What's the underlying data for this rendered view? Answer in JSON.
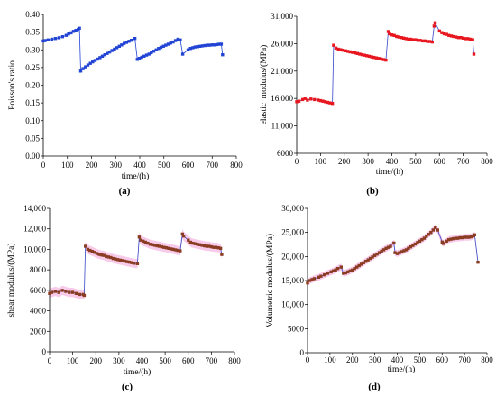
{
  "chart_data": [
    {
      "panel_label": "(a)",
      "type": "line",
      "xlabel": "time/(h)",
      "ylabel": "Poisson's ratio",
      "xlim": [
        0,
        800
      ],
      "ylim": [
        0,
        0.4
      ],
      "xticks": [
        0,
        100,
        200,
        300,
        400,
        500,
        600,
        700,
        800
      ],
      "xtick_labels": [
        "0",
        "100",
        "200",
        "300",
        "400",
        "500",
        "600",
        "700",
        "800"
      ],
      "yticks": [
        0,
        0.05,
        0.1,
        0.15,
        0.2,
        0.25,
        0.3,
        0.35,
        0.4
      ],
      "ytick_labels": [
        "0.00",
        "0.05",
        "0.10",
        "0.15",
        "0.20",
        "0.25",
        "0.30",
        "0.35",
        "0.40"
      ],
      "grid": false,
      "marker_color": "#2244d4",
      "line_color": "#2244d4",
      "series": [
        {
          "x": [
            0,
            8,
            20,
            35,
            50,
            65,
            80,
            95,
            105,
            115,
            125,
            135,
            145,
            150,
            155,
            165,
            175,
            185,
            195,
            205,
            215,
            225,
            235,
            245,
            255,
            265,
            275,
            285,
            295,
            305,
            315,
            325,
            335,
            345,
            355,
            365,
            380,
            390,
            398,
            408,
            418,
            428,
            438,
            448,
            458,
            468,
            478,
            488,
            498,
            508,
            518,
            528,
            538,
            548,
            558,
            568,
            578,
            600,
            610,
            620,
            630,
            640,
            650,
            660,
            670,
            680,
            690,
            700,
            710,
            720,
            730,
            738,
            743
          ],
          "y": [
            0.325,
            0.326,
            0.328,
            0.33,
            0.332,
            0.334,
            0.337,
            0.341,
            0.345,
            0.348,
            0.352,
            0.355,
            0.358,
            0.361,
            0.24,
            0.247,
            0.252,
            0.257,
            0.262,
            0.266,
            0.27,
            0.274,
            0.278,
            0.282,
            0.286,
            0.29,
            0.294,
            0.298,
            0.302,
            0.306,
            0.31,
            0.314,
            0.318,
            0.321,
            0.324,
            0.327,
            0.332,
            0.273,
            0.276,
            0.279,
            0.282,
            0.285,
            0.288,
            0.292,
            0.296,
            0.3,
            0.304,
            0.307,
            0.31,
            0.313,
            0.316,
            0.319,
            0.322,
            0.326,
            0.33,
            0.328,
            0.288,
            0.3,
            0.304,
            0.306,
            0.308,
            0.309,
            0.31,
            0.311,
            0.312,
            0.313,
            0.313,
            0.314,
            0.314,
            0.315,
            0.316,
            0.316,
            0.286
          ]
        }
      ]
    },
    {
      "panel_label": "(b)",
      "type": "line",
      "xlabel": "time/(h)",
      "ylabel": "elastic  modulus/(MPa)",
      "xlim": [
        0,
        800
      ],
      "ylim": [
        6000,
        31000
      ],
      "xticks": [
        0,
        100,
        200,
        300,
        400,
        500,
        600,
        700,
        800
      ],
      "xtick_labels": [
        "0",
        "100",
        "200",
        "300",
        "400",
        "500",
        "600",
        "700",
        "800"
      ],
      "yticks": [
        6000,
        11000,
        16000,
        21000,
        26000,
        31000
      ],
      "ytick_labels": [
        "6000",
        "11,000",
        "16,000",
        "21,000",
        "26,000",
        "31,000"
      ],
      "grid": false,
      "marker_color": "#e8161e",
      "line_color": "#3548c8",
      "series": [
        {
          "x": [
            0,
            10,
            25,
            35,
            45,
            60,
            75,
            90,
            100,
            110,
            120,
            130,
            140,
            150,
            155,
            165,
            175,
            185,
            195,
            205,
            215,
            225,
            235,
            245,
            255,
            265,
            275,
            285,
            295,
            305,
            315,
            325,
            335,
            345,
            355,
            365,
            375,
            385,
            390,
            400,
            410,
            420,
            430,
            440,
            450,
            460,
            470,
            480,
            490,
            500,
            510,
            520,
            530,
            540,
            550,
            560,
            570,
            578,
            582,
            600,
            610,
            620,
            630,
            640,
            650,
            660,
            670,
            680,
            690,
            700,
            710,
            720,
            730,
            740,
            745
          ],
          "y": [
            15400,
            15500,
            15800,
            16000,
            15700,
            15900,
            15800,
            15700,
            15600,
            15500,
            15400,
            15300,
            15200,
            15100,
            25700,
            25200,
            25000,
            24900,
            24800,
            24700,
            24600,
            24500,
            24400,
            24300,
            24200,
            24100,
            24000,
            23900,
            23800,
            23700,
            23600,
            23500,
            23400,
            23300,
            23200,
            23100,
            23000,
            28200,
            27800,
            27600,
            27500,
            27300,
            27200,
            27100,
            27000,
            26900,
            26800,
            26800,
            26700,
            26700,
            26600,
            26600,
            26500,
            26500,
            26400,
            26400,
            26300,
            29200,
            29800,
            28300,
            28000,
            27800,
            27700,
            27500,
            27400,
            27300,
            27200,
            27100,
            27100,
            27000,
            26900,
            26900,
            26800,
            26700,
            24100
          ]
        }
      ]
    },
    {
      "panel_label": "(c)",
      "type": "line",
      "xlabel": "time/(h)",
      "ylabel": "shear modulus/(MPa)",
      "xlim": [
        0,
        800
      ],
      "ylim": [
        0,
        14000
      ],
      "xticks": [
        0,
        100,
        200,
        300,
        400,
        500,
        600,
        700,
        800
      ],
      "xtick_labels": [
        "0",
        "100",
        "200",
        "300",
        "400",
        "500",
        "600",
        "700",
        "800"
      ],
      "yticks": [
        0,
        2000,
        4000,
        6000,
        8000,
        10000,
        12000,
        14000
      ],
      "ytick_labels": [
        "0",
        "2000",
        "4000",
        "6000",
        "8000",
        "10,000",
        "12,000",
        "14,000"
      ],
      "grid": false,
      "marker_color": "#8a3d22",
      "line_color": "#3548c8",
      "band_color": "#f7c2e6",
      "error_band": 450,
      "series": [
        {
          "x": [
            0,
            10,
            25,
            40,
            55,
            70,
            85,
            100,
            115,
            130,
            145,
            150,
            155,
            165,
            175,
            185,
            195,
            205,
            215,
            225,
            235,
            245,
            255,
            265,
            275,
            285,
            295,
            305,
            315,
            325,
            335,
            345,
            355,
            365,
            380,
            388,
            395,
            405,
            415,
            425,
            435,
            445,
            455,
            465,
            475,
            485,
            495,
            505,
            515,
            525,
            535,
            545,
            555,
            565,
            575,
            580,
            600,
            610,
            620,
            630,
            640,
            650,
            660,
            670,
            680,
            690,
            700,
            710,
            720,
            730,
            740,
            745
          ],
          "y": [
            5700,
            5800,
            5900,
            5800,
            6000,
            5900,
            5800,
            5800,
            5700,
            5600,
            5600,
            5500,
            10300,
            10000,
            9900,
            9800,
            9700,
            9600,
            9500,
            9450,
            9400,
            9300,
            9250,
            9200,
            9100,
            9050,
            9000,
            8950,
            8900,
            8850,
            8800,
            8750,
            8700,
            8650,
            8600,
            11200,
            10900,
            10800,
            10700,
            10600,
            10500,
            10450,
            10400,
            10350,
            10300,
            10250,
            10200,
            10150,
            10100,
            10050,
            10000,
            9950,
            9900,
            9850,
            11500,
            11300,
            10900,
            10700,
            10600,
            10550,
            10500,
            10450,
            10400,
            10350,
            10300,
            10300,
            10250,
            10200,
            10200,
            10150,
            10100,
            9500
          ]
        }
      ]
    },
    {
      "panel_label": "(d)",
      "type": "line",
      "xlabel": "time/(h)",
      "ylabel": "Volumetric modulus/(MPa)",
      "xlim": [
        0,
        800
      ],
      "ylim": [
        0,
        30000
      ],
      "xticks": [
        0,
        100,
        200,
        300,
        400,
        500,
        600,
        700,
        800
      ],
      "xtick_labels": [
        "0",
        "100",
        "200",
        "300",
        "400",
        "500",
        "600",
        "700",
        "800"
      ],
      "yticks": [
        0,
        5000,
        10000,
        15000,
        20000,
        25000,
        30000
      ],
      "ytick_labels": [
        "0",
        "5000",
        "10,000",
        "15,000",
        "20,000",
        "25,000",
        "30,000"
      ],
      "grid": false,
      "marker_color": "#8a3d22",
      "line_color": "#3548c8",
      "band_color": "#f7c2e6",
      "error_band": 700,
      "series": [
        {
          "x": [
            0,
            10,
            20,
            30,
            50,
            60,
            75,
            90,
            105,
            115,
            125,
            135,
            150,
            160,
            170,
            180,
            190,
            200,
            210,
            220,
            230,
            240,
            250,
            260,
            270,
            280,
            290,
            300,
            310,
            320,
            330,
            340,
            350,
            360,
            370,
            385,
            390,
            400,
            410,
            420,
            430,
            440,
            450,
            460,
            470,
            480,
            490,
            500,
            510,
            520,
            530,
            540,
            550,
            560,
            570,
            580,
            600,
            605,
            620,
            630,
            640,
            650,
            660,
            670,
            680,
            690,
            700,
            710,
            720,
            730,
            740,
            745,
            760
          ],
          "y": [
            14500,
            15000,
            15200,
            15400,
            15700,
            15900,
            16200,
            16500,
            16800,
            17000,
            17200,
            17500,
            17800,
            16500,
            16600,
            16800,
            17000,
            17200,
            17500,
            17800,
            18100,
            18400,
            18700,
            19000,
            19300,
            19600,
            19900,
            20200,
            20500,
            20800,
            21100,
            21400,
            21700,
            21900,
            22100,
            22800,
            20800,
            20600,
            20800,
            21000,
            21200,
            21400,
            21700,
            22000,
            22300,
            22600,
            22900,
            23200,
            23500,
            23800,
            24200,
            24600,
            25000,
            25500,
            26000,
            25500,
            23000,
            22700,
            23200,
            23500,
            23600,
            23700,
            23800,
            23800,
            23900,
            23900,
            24000,
            24000,
            24000,
            24100,
            24300,
            24500,
            18800
          ]
        }
      ]
    }
  ]
}
